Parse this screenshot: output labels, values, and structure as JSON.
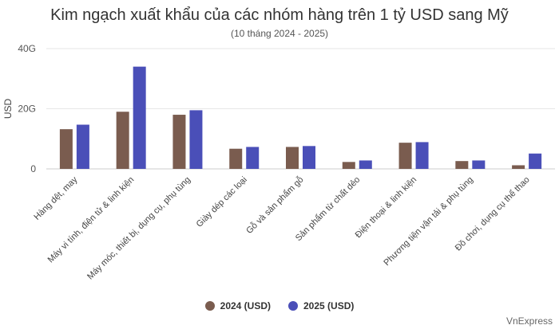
{
  "chart_data": {
    "type": "bar",
    "title": "Kim ngạch xuất khẩu của các nhóm hàng trên 1 tỷ USD sang Mỹ",
    "subtitle": "(10 tháng 2024 - 2025)",
    "ylabel": "USD",
    "xlabel": "",
    "ylim": [
      0,
      40
    ],
    "yticks": [
      0,
      20,
      40
    ],
    "ytick_labels": [
      "0",
      "20G",
      "40G"
    ],
    "grid": true,
    "legend_position": "bottom",
    "categories": [
      "Hàng dệt, may",
      "Máy vi tính, điện tử & linh kiện",
      "Máy móc, thiết bị, dụng cụ, phụ tùng",
      "Giày dép các loại",
      "Gỗ và sản phẩm gỗ",
      "Sản phẩm từ chất dẻo",
      "Điện thoại & linh kiện",
      "Phương tiện vận tải & phụ tùng",
      "Đồ chơi, dụng cụ thể thao"
    ],
    "series": [
      {
        "name": "2024 (USD)",
        "color": "#7a5c4f",
        "values": [
          13.2,
          19.0,
          18.0,
          6.7,
          7.3,
          2.3,
          8.7,
          2.6,
          1.2
        ]
      },
      {
        "name": "2025 (USD)",
        "color": "#4a4fb8",
        "values": [
          14.7,
          34.0,
          19.5,
          7.3,
          7.6,
          2.8,
          8.9,
          2.8,
          5.1
        ]
      }
    ]
  },
  "source": "VnExpress"
}
